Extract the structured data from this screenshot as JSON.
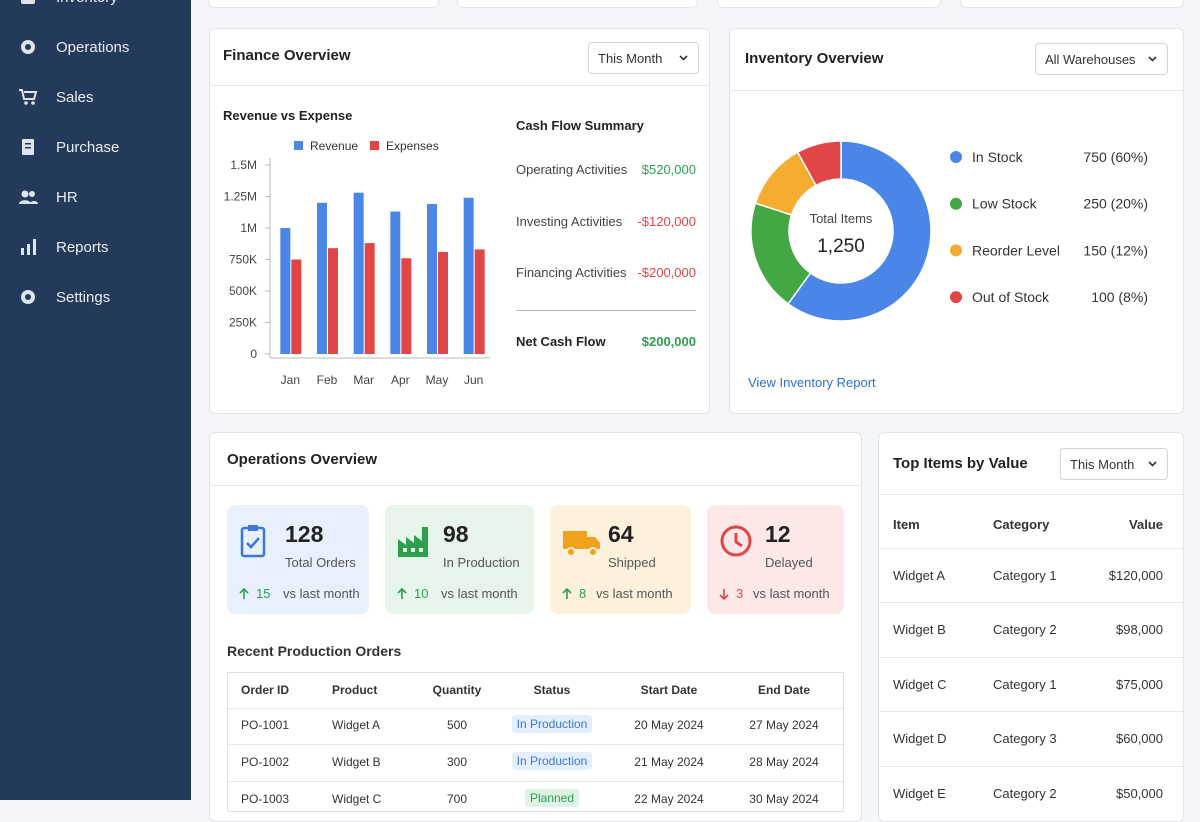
{
  "sidebar": {
    "items": [
      "Inventory",
      "Operations",
      "Sales",
      "Purchase",
      "HR",
      "Reports",
      "Settings"
    ]
  },
  "finance": {
    "title": "Finance Overview",
    "dropdown": "This Month",
    "chart": {
      "type": "bar",
      "title": "Revenue vs Expense",
      "categories": [
        "Jan",
        "Feb",
        "Mar",
        "Apr",
        "May",
        "Jun"
      ],
      "series": [
        {
          "name": "Revenue",
          "color": "#4a86e8",
          "values": [
            1000000,
            1200000,
            1280000,
            1130000,
            1190000,
            1240000
          ]
        },
        {
          "name": "Expenses",
          "color": "#e04646",
          "values": [
            750000,
            840000,
            880000,
            760000,
            810000,
            830000
          ]
        }
      ],
      "ylim": [
        0,
        1500000
      ],
      "yticks": [
        0,
        {
          "value": 250000,
          "label": "250K"
        },
        {
          "value": 500000,
          "label": "500K"
        },
        {
          "value": 750000,
          "label": "750K"
        },
        {
          "value": 1000000,
          "label": "1M"
        },
        {
          "value": 1250000,
          "label": "1.25M"
        },
        {
          "value": 1500000,
          "label": "1.5M"
        }
      ]
    },
    "cash_flow": {
      "title": "Cash Flow Summary",
      "rows": [
        {
          "label": "Operating Activities",
          "value": "$520,000",
          "color": "#2e9e4f"
        },
        {
          "label": "Investing Activities",
          "value": "-$120,000",
          "color": "#e04646"
        },
        {
          "label": "Financing Activities",
          "value": "-$200,000",
          "color": "#e04646"
        }
      ],
      "net": {
        "label": "Net Cash Flow",
        "value": "$200,000",
        "color": "#2e9e4f"
      }
    }
  },
  "inventory": {
    "title": "Inventory Overview",
    "dropdown": "All Warehouses",
    "chart": {
      "type": "pie",
      "center_label": "Total Items",
      "center_value": "1,250",
      "categories": [
        "In Stock",
        "Low Stock",
        "Reorder Level",
        "Out of Stock"
      ],
      "values": [
        750,
        250,
        150,
        100
      ],
      "value_labels": [
        "750 (60%)",
        "250 (20%)",
        "150 (12%)",
        "100 (8%)"
      ],
      "colors": [
        "#4a86e8",
        "#43a843",
        "#f6ac2e",
        "#e04646"
      ]
    },
    "link": "View Inventory Report"
  },
  "operations": {
    "title": "Operations Overview",
    "tiles": [
      {
        "value": 128,
        "label": "Total Orders",
        "delta": 15,
        "delta_text": "vs last month",
        "trend": "up"
      },
      {
        "value": 98,
        "label": "In Production",
        "delta": 10,
        "delta_text": "vs last month",
        "trend": "up"
      },
      {
        "value": 64,
        "label": "Shipped",
        "delta": 8,
        "delta_text": "vs last month",
        "trend": "up"
      },
      {
        "value": 12,
        "label": "Delayed",
        "delta": 3,
        "delta_text": "vs last month",
        "trend": "down"
      }
    ],
    "orders": {
      "title": "Recent Production Orders",
      "columns": [
        "Order ID",
        "Product",
        "Quantity",
        "Status",
        "Start Date",
        "End Date"
      ],
      "rows": [
        [
          "PO-1001",
          "Widget A",
          "500",
          "In Production",
          "20 May 2024",
          "27 May 2024"
        ],
        [
          "PO-1002",
          "Widget B",
          "300",
          "In Production",
          "21 May 2024",
          "28 May 2024"
        ],
        [
          "PO-1003",
          "Widget C",
          "700",
          "Planned",
          "22 May 2024",
          "30 May 2024"
        ]
      ]
    }
  },
  "top_items": {
    "title": "Top Items by Value",
    "dropdown": "This Month",
    "columns": [
      "Item",
      "Category",
      "Value"
    ],
    "rows": [
      [
        "Widget A",
        "Category 1",
        "$120,000"
      ],
      [
        "Widget B",
        "Category 2",
        "$98,000"
      ],
      [
        "Widget C",
        "Category 1",
        "$75,000"
      ],
      [
        "Widget D",
        "Category 3",
        "$60,000"
      ],
      [
        "Widget E",
        "Category 2",
        "$50,000"
      ]
    ]
  }
}
